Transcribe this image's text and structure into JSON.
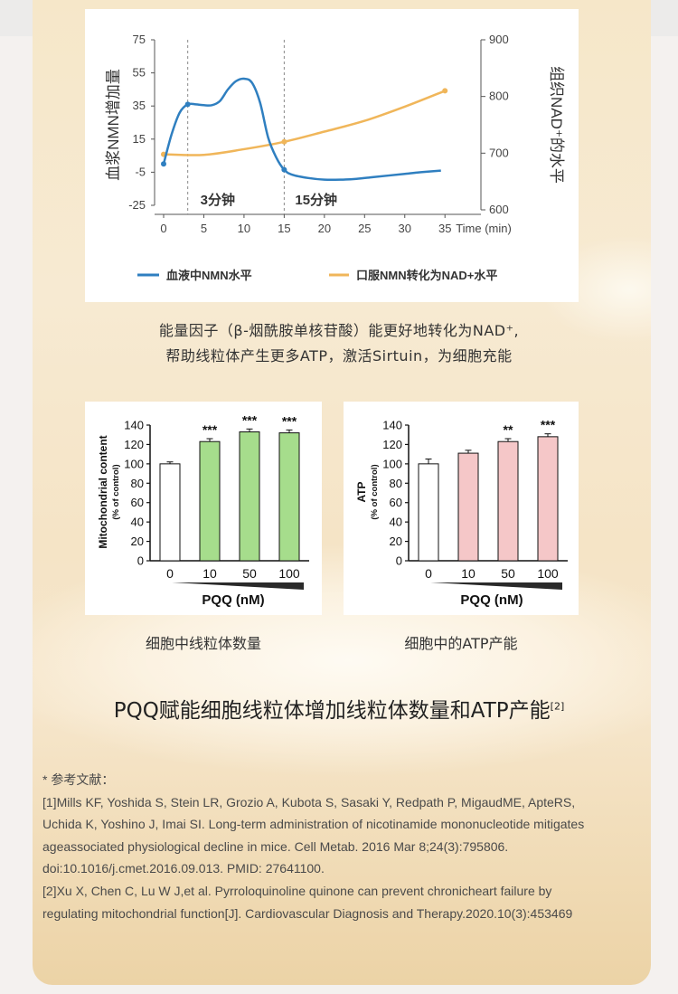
{
  "caption_top": [
    "能量因子（β-烟酰胺单核苷酸）能更好地转化为NAD⁺,",
    "帮助线粒体产生更多ATP，激活Sirtuin，为细胞充能"
  ],
  "caption_left": "细胞中线粒体数量",
  "caption_right": "细胞中的ATP产能",
  "headline": "PQQ赋能细胞线粒体增加线粒体数量和ATP产能",
  "headline_sup": "[2]",
  "references": {
    "heading": "* 参考文献：",
    "lines": [
      "[1]Mills KF, Yoshida S, Stein LR, Grozio A, Kubota S, Sasaki Y, Redpath P, MigaudME, ApteRS,",
      "Uchida K, Yoshino J, Imai SI. Long-term administration of nicotinamide mononucleotide mitigates",
      "ageassociated physiological decline in mice. Cell Metab. 2016 Mar 8;24(3):795806.",
      "doi:10.1016/j.cmet.2016.09.013. PMID: 27641100.",
      "[2]Xu X, Chen C, Lu W J,et al. Pyrroloquinoline quinone can prevent chronicheart failure by",
      " regulating mitochondrial function[J]. Cardiovascular Diagnosis and Therapy.2020.10(3):453469"
    ]
  },
  "colors": {
    "blue_series": "#2f7fc0",
    "orange_series": "#f0b65a",
    "green_bar": "#a6dd8c",
    "pink_bar": "#f5c7c8"
  },
  "chart_data": [
    {
      "type": "line",
      "xlabel": "Time (min)",
      "ylabel_left": "血浆NMN增加量",
      "ylabel_right": "组织NAD⁺的水平",
      "x_ticks": [
        0,
        5,
        10,
        15,
        20,
        25,
        30,
        35
      ],
      "y_left_ticks": [
        75,
        55,
        35,
        15,
        -5,
        -25
      ],
      "y_right_ticks": [
        900,
        800,
        700,
        600
      ],
      "xlim": [
        0,
        37
      ],
      "ylim_left": [
        -25,
        75
      ],
      "ylim_right": [
        600,
        900
      ],
      "annotations": [
        "3分钟",
        "15分钟"
      ],
      "markers_x": [
        3,
        15
      ],
      "legend": [
        "血液中NMN水平",
        "口服NMN转化为NAD+水平"
      ],
      "series": [
        {
          "name": "血液中NMN水平",
          "axis": "left",
          "x": [
            0,
            1,
            2,
            3,
            4,
            5,
            6,
            7,
            8,
            9,
            10,
            11,
            12,
            13,
            14,
            15,
            16,
            18,
            20,
            22,
            24,
            26,
            28,
            30,
            32,
            34.5
          ],
          "y": [
            0,
            18,
            31,
            36,
            36,
            35.5,
            35.5,
            38,
            45,
            50,
            51.5,
            49,
            37,
            16,
            4,
            -3.5,
            -6.5,
            -8.5,
            -9.5,
            -9.5,
            -9,
            -8,
            -7,
            -6,
            -5,
            -4
          ]
        },
        {
          "name": "口服NMN转化为NAD+水平",
          "axis": "right",
          "x": [
            0,
            5,
            10,
            15,
            20,
            25,
            30,
            35
          ],
          "y": [
            698,
            697,
            707,
            720,
            738,
            757,
            782,
            810
          ]
        }
      ]
    },
    {
      "type": "bar",
      "ylabel": "Mitochondrial content",
      "ylabel_sub": "(% of control)",
      "xlabel": "PQQ (nM)",
      "categories": [
        "0",
        "10",
        "50",
        "100"
      ],
      "values": [
        100,
        123,
        133,
        132
      ],
      "errors": [
        2,
        3,
        3,
        3
      ],
      "significance": [
        "",
        "***",
        "***",
        "***"
      ],
      "y_ticks": [
        0,
        20,
        40,
        60,
        80,
        100,
        120,
        140
      ],
      "ylim": [
        0,
        140
      ]
    },
    {
      "type": "bar",
      "ylabel": "ATP",
      "ylabel_sub": "(% of control)",
      "xlabel": "PQQ (nM)",
      "categories": [
        "0",
        "10",
        "50",
        "100"
      ],
      "values": [
        100,
        111,
        123,
        128
      ],
      "errors": [
        5,
        3,
        3,
        3
      ],
      "significance": [
        "",
        "",
        "**",
        "***"
      ],
      "y_ticks": [
        0,
        20,
        40,
        60,
        80,
        100,
        120,
        140
      ],
      "ylim": [
        0,
        140
      ]
    }
  ]
}
